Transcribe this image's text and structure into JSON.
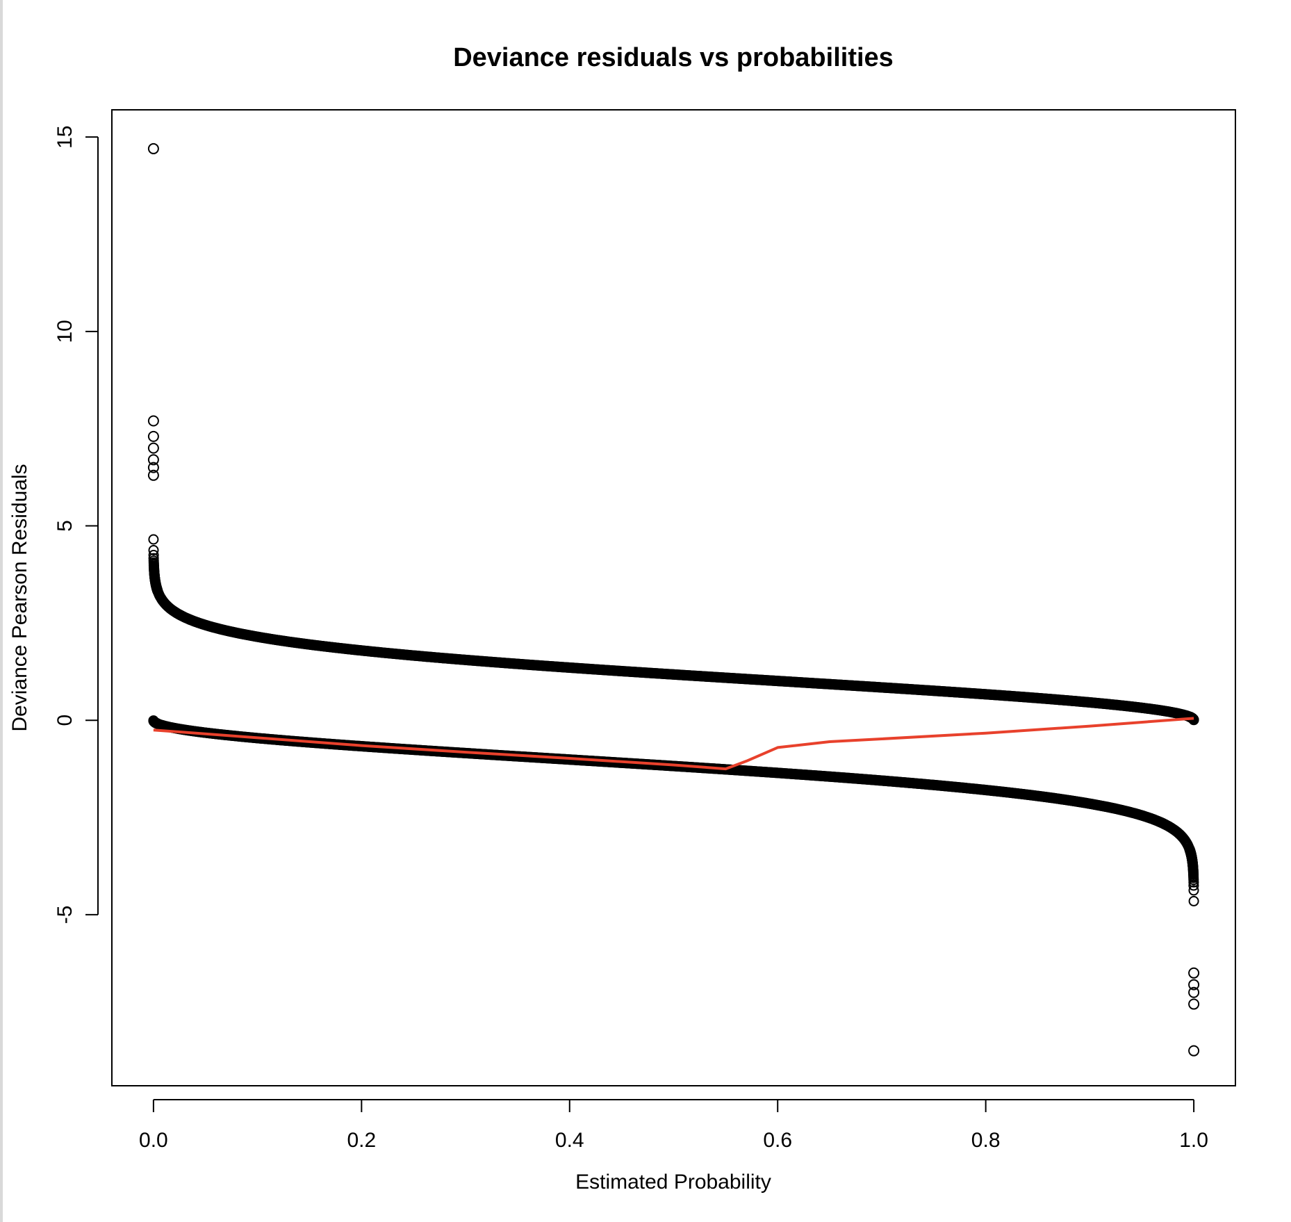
{
  "chart_data": {
    "type": "scatter",
    "title": "Deviance residuals vs probabilities",
    "xlabel": "Estimated Probability",
    "ylabel": "Deviance Pearson Residuals",
    "xlim": [
      -0.04,
      1.04
    ],
    "ylim": [
      -9.4,
      15.7
    ],
    "x_ticks": [
      0.0,
      0.2,
      0.4,
      0.6,
      0.8,
      1.0
    ],
    "x_tick_labels": [
      "0.0",
      "0.2",
      "0.4",
      "0.6",
      "0.8",
      "1.0"
    ],
    "y_ticks": [
      -5,
      0,
      5,
      10,
      15
    ],
    "y_tick_labels": [
      "-5",
      "0",
      "5",
      "10",
      "15"
    ],
    "grid": false,
    "legend": "none",
    "colors": {
      "points": "#000000",
      "smooth_line": "#e8412c",
      "axes": "#000000"
    },
    "series": [
      {
        "marker": "open-circle",
        "description_points": "upper branch y = sqrt(-2 ln p) and lower branch y = -sqrt(-2 ln(1-p))",
        "outliers": [
          {
            "x": 0.0,
            "y": 14.7
          },
          {
            "x": 0.0,
            "y": 7.7
          },
          {
            "x": 0.0,
            "y": 7.3
          },
          {
            "x": 0.0,
            "y": 7.0
          },
          {
            "x": 0.0,
            "y": 6.7
          },
          {
            "x": 0.0,
            "y": 6.5
          },
          {
            "x": 0.0,
            "y": 6.3
          },
          {
            "x": 1.0,
            "y": -6.5
          },
          {
            "x": 1.0,
            "y": -6.8
          },
          {
            "x": 1.0,
            "y": -7.0
          },
          {
            "x": 1.0,
            "y": -7.3
          },
          {
            "x": 1.0,
            "y": -8.5
          }
        ]
      },
      {
        "type": "line",
        "x": [
          0.0,
          0.1,
          0.2,
          0.3,
          0.4,
          0.5,
          0.55,
          0.57,
          0.6,
          0.65,
          0.7,
          0.8,
          0.9,
          1.0
        ],
        "y": [
          -0.25,
          -0.45,
          -0.65,
          -0.82,
          -0.98,
          -1.15,
          -1.25,
          -1.05,
          -0.7,
          -0.55,
          -0.48,
          -0.33,
          -0.15,
          0.05
        ]
      }
    ]
  }
}
